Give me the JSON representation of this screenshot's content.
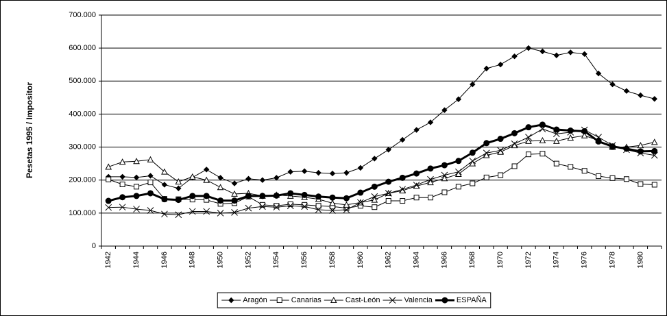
{
  "chart_data": {
    "type": "line",
    "y_label": "Pesetas 1995 / Impositor",
    "categories": [
      "1942",
      null,
      "1944",
      null,
      "1946",
      null,
      "1948",
      null,
      "1950",
      null,
      "1952",
      null,
      "1954",
      null,
      "1956",
      null,
      "1958",
      null,
      "1960",
      null,
      "1962",
      null,
      "1964",
      null,
      "1966",
      null,
      "1968",
      null,
      "1970",
      null,
      "1972",
      null,
      "1974",
      null,
      "1976",
      null,
      "1978",
      null,
      "1980",
      null
    ],
    "ylim": [
      0,
      700000
    ],
    "yticks": [
      0,
      {
        "value": 100000,
        "label": "100.000"
      },
      {
        "value": 200000,
        "label": "200.000"
      },
      {
        "value": 300000,
        "label": "300.000"
      },
      {
        "value": 400000,
        "label": "400.000"
      },
      {
        "value": 500000,
        "label": "500.000"
      },
      {
        "value": 600000,
        "label": "600.000"
      },
      {
        "value": 700000,
        "label": "700.000"
      }
    ],
    "grid": true,
    "legend": "bottom",
    "series": [
      {
        "name": "Aragón",
        "color": "#000000",
        "marker": "diamond",
        "width": 1,
        "values": [
          210000,
          210000,
          208000,
          213000,
          186000,
          175000,
          208000,
          232000,
          207000,
          190000,
          204000,
          200000,
          207000,
          225000,
          227000,
          222000,
          220000,
          222000,
          237000,
          265000,
          292000,
          322000,
          352000,
          375000,
          412000,
          445000,
          490000,
          538000,
          550000,
          575000,
          600000,
          590000,
          578000,
          587000,
          582000,
          523000,
          490000,
          470000,
          457000,
          446000
        ]
      },
      {
        "name": "Canarias",
        "color": "#000000",
        "marker": "square",
        "width": 1,
        "values": [
          202000,
          187000,
          180000,
          193000,
          143000,
          142000,
          141000,
          140000,
          128000,
          130000,
          150000,
          125000,
          122000,
          127000,
          125000,
          122000,
          120000,
          115000,
          122000,
          118000,
          137000,
          137000,
          147000,
          147000,
          163000,
          180000,
          190000,
          208000,
          215000,
          242000,
          278000,
          280000,
          250000,
          240000,
          228000,
          212000,
          206000,
          203000,
          188000,
          186000
        ]
      },
      {
        "name": "Cast-León",
        "color": "#000000",
        "marker": "triangle",
        "width": 1,
        "values": [
          240000,
          255000,
          257000,
          262000,
          225000,
          195000,
          210000,
          200000,
          178000,
          158000,
          160000,
          152000,
          155000,
          152000,
          148000,
          142000,
          130000,
          125000,
          132000,
          140000,
          160000,
          168000,
          182000,
          193000,
          205000,
          218000,
          250000,
          275000,
          285000,
          305000,
          318000,
          320000,
          318000,
          328000,
          335000,
          320000,
          300000,
          300000,
          305000,
          315000
        ]
      },
      {
        "name": "Valencia",
        "color": "#000000",
        "marker": "x",
        "width": 1,
        "values": [
          117000,
          118000,
          112000,
          108000,
          97000,
          95000,
          105000,
          105000,
          100000,
          102000,
          115000,
          120000,
          118000,
          122000,
          120000,
          110000,
          108000,
          110000,
          132000,
          150000,
          160000,
          172000,
          185000,
          202000,
          215000,
          225000,
          258000,
          282000,
          290000,
          310000,
          330000,
          355000,
          340000,
          345000,
          352000,
          330000,
          305000,
          292000,
          282000,
          275000
        ]
      },
      {
        "name": "ESPAÑA",
        "color": "#000000",
        "marker": "circle",
        "width": 3,
        "values": [
          137000,
          148000,
          152000,
          160000,
          142000,
          140000,
          152000,
          152000,
          138000,
          138000,
          152000,
          152000,
          153000,
          160000,
          155000,
          150000,
          147000,
          145000,
          162000,
          180000,
          195000,
          207000,
          220000,
          235000,
          245000,
          258000,
          283000,
          312000,
          325000,
          342000,
          360000,
          368000,
          353000,
          350000,
          348000,
          317000,
          302000,
          295000,
          287000,
          288000
        ]
      }
    ]
  }
}
